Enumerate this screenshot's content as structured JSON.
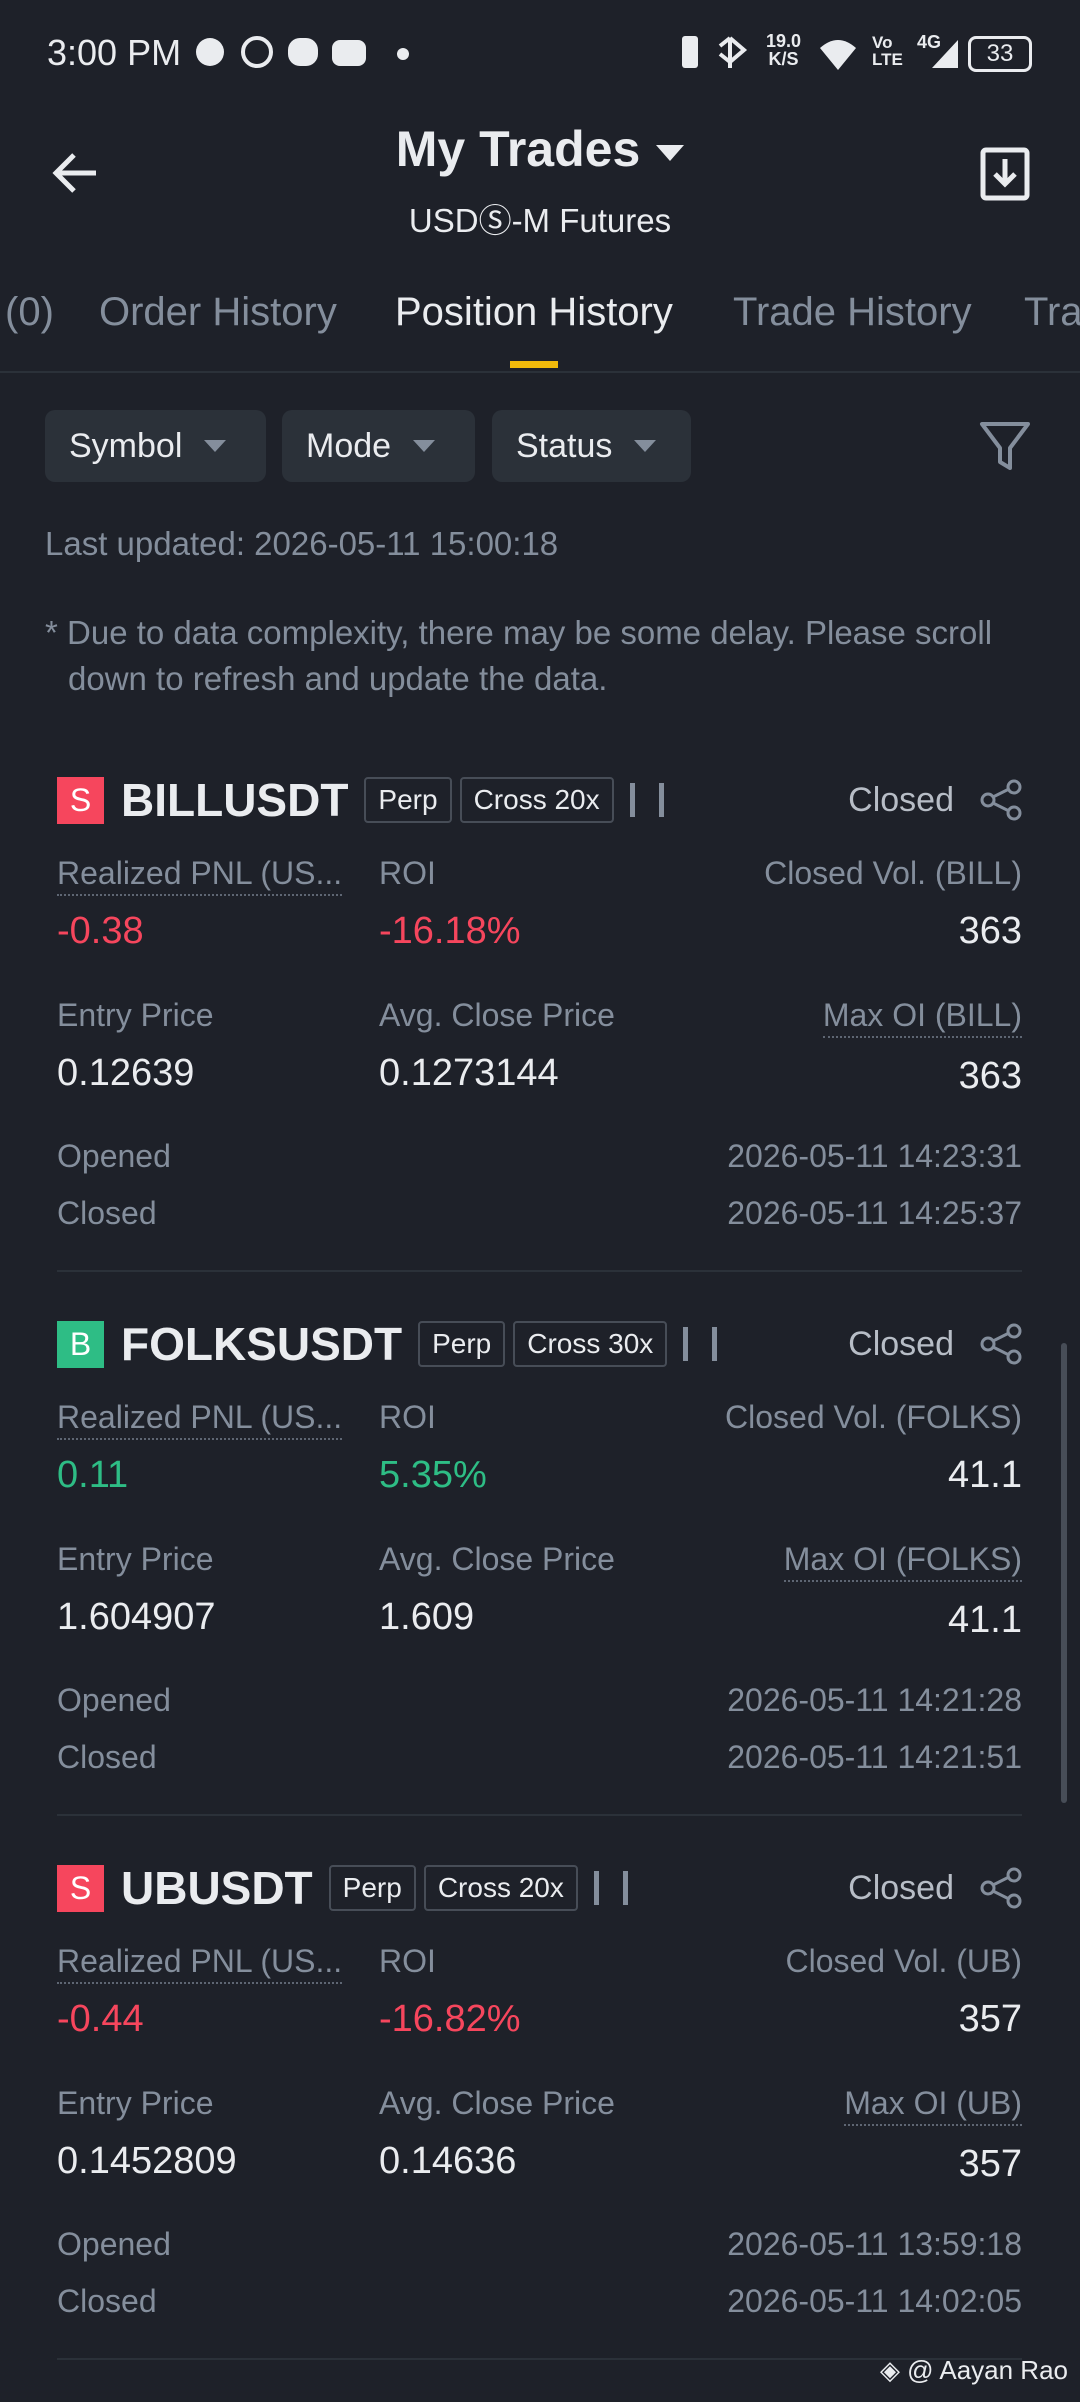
{
  "status_bar": {
    "time": "3:00 PM",
    "net_speed": "19.0",
    "net_unit": "K/S",
    "volte_top": "Vo",
    "volte_bottom": "LTE",
    "network": "4G",
    "battery": "33"
  },
  "header": {
    "title": "My Trades",
    "subtitle": "USDⓈ-M Futures"
  },
  "tabs": {
    "items": [
      "(0)",
      "Order History",
      "Position History",
      "Trade History",
      "Tra"
    ],
    "active": 2
  },
  "filters": [
    "Symbol",
    "Mode",
    "Status"
  ],
  "last_updated": "Last updated: 2026-05-11 15:00:18",
  "notice": "* Due to data complexity, there may be some delay. Please scroll down to refresh and update the data.",
  "positions": [
    {
      "side": "S",
      "side_color": "#f6465d",
      "symbol": "BILLUSDT",
      "contract": "Perp",
      "margin": "Cross 20x",
      "status": "Closed",
      "labels": {
        "pnl": "Realized PNL (US...",
        "roi": "ROI",
        "closed_vol": "Closed Vol. (BILL)",
        "entry": "Entry Price",
        "avg_close": "Avg. Close Price",
        "max_oi": "Max OI (BILL)",
        "opened": "Opened",
        "closed": "Closed"
      },
      "pnl_color": "#f6465d",
      "pnl": "-0.38",
      "roi": "-16.18%",
      "closed_vol": "363",
      "entry": "0.12639",
      "avg_close": "0.1273144",
      "max_oi": "363",
      "opened": "2026-05-11 14:23:31",
      "closed": "2026-05-11 14:25:37"
    },
    {
      "side": "B",
      "side_color": "#2ebd85",
      "symbol": "FOLKSUSDT",
      "contract": "Perp",
      "margin": "Cross 30x",
      "status": "Closed",
      "labels": {
        "pnl": "Realized PNL (US...",
        "roi": "ROI",
        "closed_vol": "Closed Vol. (FOLKS)",
        "entry": "Entry Price",
        "avg_close": "Avg. Close Price",
        "max_oi": "Max OI (FOLKS)",
        "opened": "Opened",
        "closed": "Closed"
      },
      "pnl_color": "#2ebd85",
      "pnl": "0.11",
      "roi": "5.35%",
      "closed_vol": "41.1",
      "entry": "1.604907",
      "avg_close": "1.609",
      "max_oi": "41.1",
      "opened": "2026-05-11 14:21:28",
      "closed": "2026-05-11 14:21:51"
    },
    {
      "side": "S",
      "side_color": "#f6465d",
      "symbol": "UBUSDT",
      "contract": "Perp",
      "margin": "Cross 20x",
      "status": "Closed",
      "labels": {
        "pnl": "Realized PNL (US...",
        "roi": "ROI",
        "closed_vol": "Closed Vol. (UB)",
        "entry": "Entry Price",
        "avg_close": "Avg. Close Price",
        "max_oi": "Max OI (UB)",
        "opened": "Opened",
        "closed": "Closed"
      },
      "pnl_color": "#f6465d",
      "pnl": "-0.44",
      "roi": "-16.82%",
      "closed_vol": "357",
      "entry": "0.1452809",
      "avg_close": "0.14636",
      "max_oi": "357",
      "opened": "2026-05-11 13:59:18",
      "closed": "2026-05-11 14:02:05"
    }
  ],
  "watermark": "@ Aayan Rao"
}
